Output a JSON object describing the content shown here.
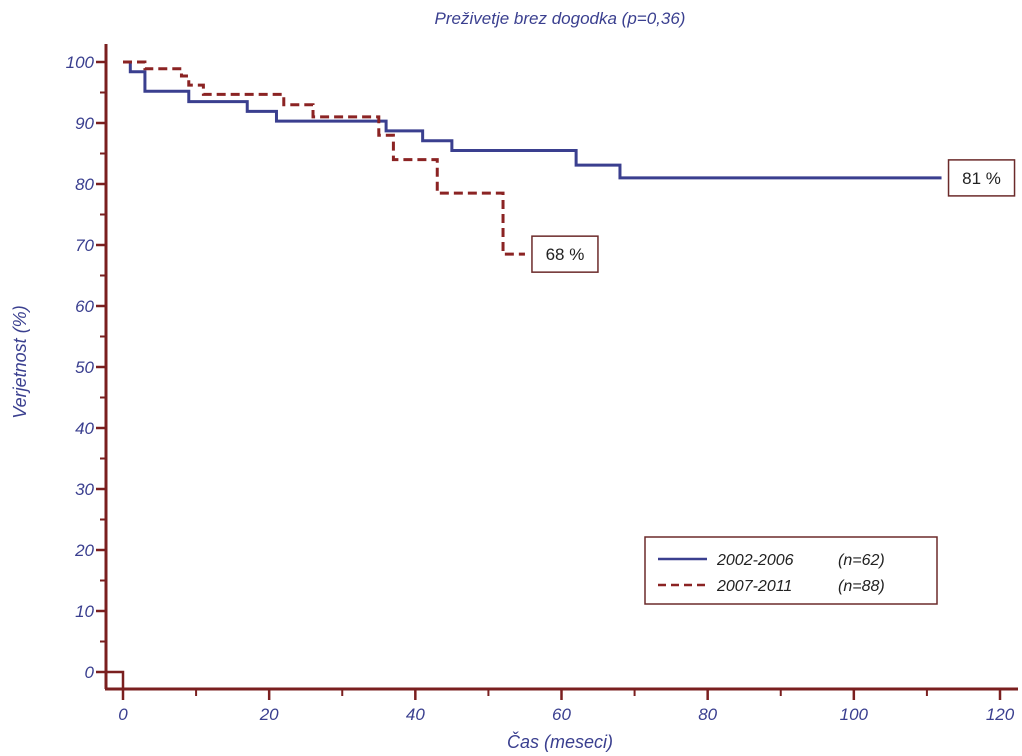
{
  "chart_data": {
    "type": "line",
    "title": "Preživetje brez dogodka  (p=0,36)",
    "xlabel": "Čas (meseci)",
    "ylabel": "Verjetnost (%)",
    "xlim": [
      0,
      120
    ],
    "ylim": [
      0,
      100
    ],
    "xticks": [
      0,
      20,
      40,
      60,
      80,
      100,
      120
    ],
    "yticks": [
      0,
      10,
      20,
      30,
      40,
      50,
      60,
      70,
      80,
      90,
      100
    ],
    "grid": false,
    "legend_position": "bottom-right",
    "colors": {
      "axis": "#7a1f1f",
      "text": "#3a3f8f"
    },
    "series": [
      {
        "name": "2002-2006",
        "n_label": "(n=62)",
        "style": "solid",
        "color": "#3a3f8f",
        "steps": [
          [
            0,
            100
          ],
          [
            1,
            98.4
          ],
          [
            3,
            95.2
          ],
          [
            9,
            93.5
          ],
          [
            17,
            91.9
          ],
          [
            21,
            90.3
          ],
          [
            36,
            88.7
          ],
          [
            41,
            87.1
          ],
          [
            45,
            85.5
          ],
          [
            62,
            83.1
          ],
          [
            68,
            81
          ],
          [
            112,
            81
          ]
        ],
        "end_label": "81 %"
      },
      {
        "name": "2007-2011",
        "n_label": "(n=88)",
        "style": "dashed",
        "color": "#8b2323",
        "steps": [
          [
            0,
            100
          ],
          [
            3,
            98.9
          ],
          [
            8,
            97.7
          ],
          [
            9,
            96.2
          ],
          [
            11,
            94.7
          ],
          [
            22,
            93
          ],
          [
            26,
            91
          ],
          [
            35,
            88
          ],
          [
            37,
            84
          ],
          [
            43,
            78.5
          ],
          [
            52,
            68.5
          ],
          [
            55,
            68.5
          ]
        ],
        "end_label": "68 %"
      }
    ]
  }
}
